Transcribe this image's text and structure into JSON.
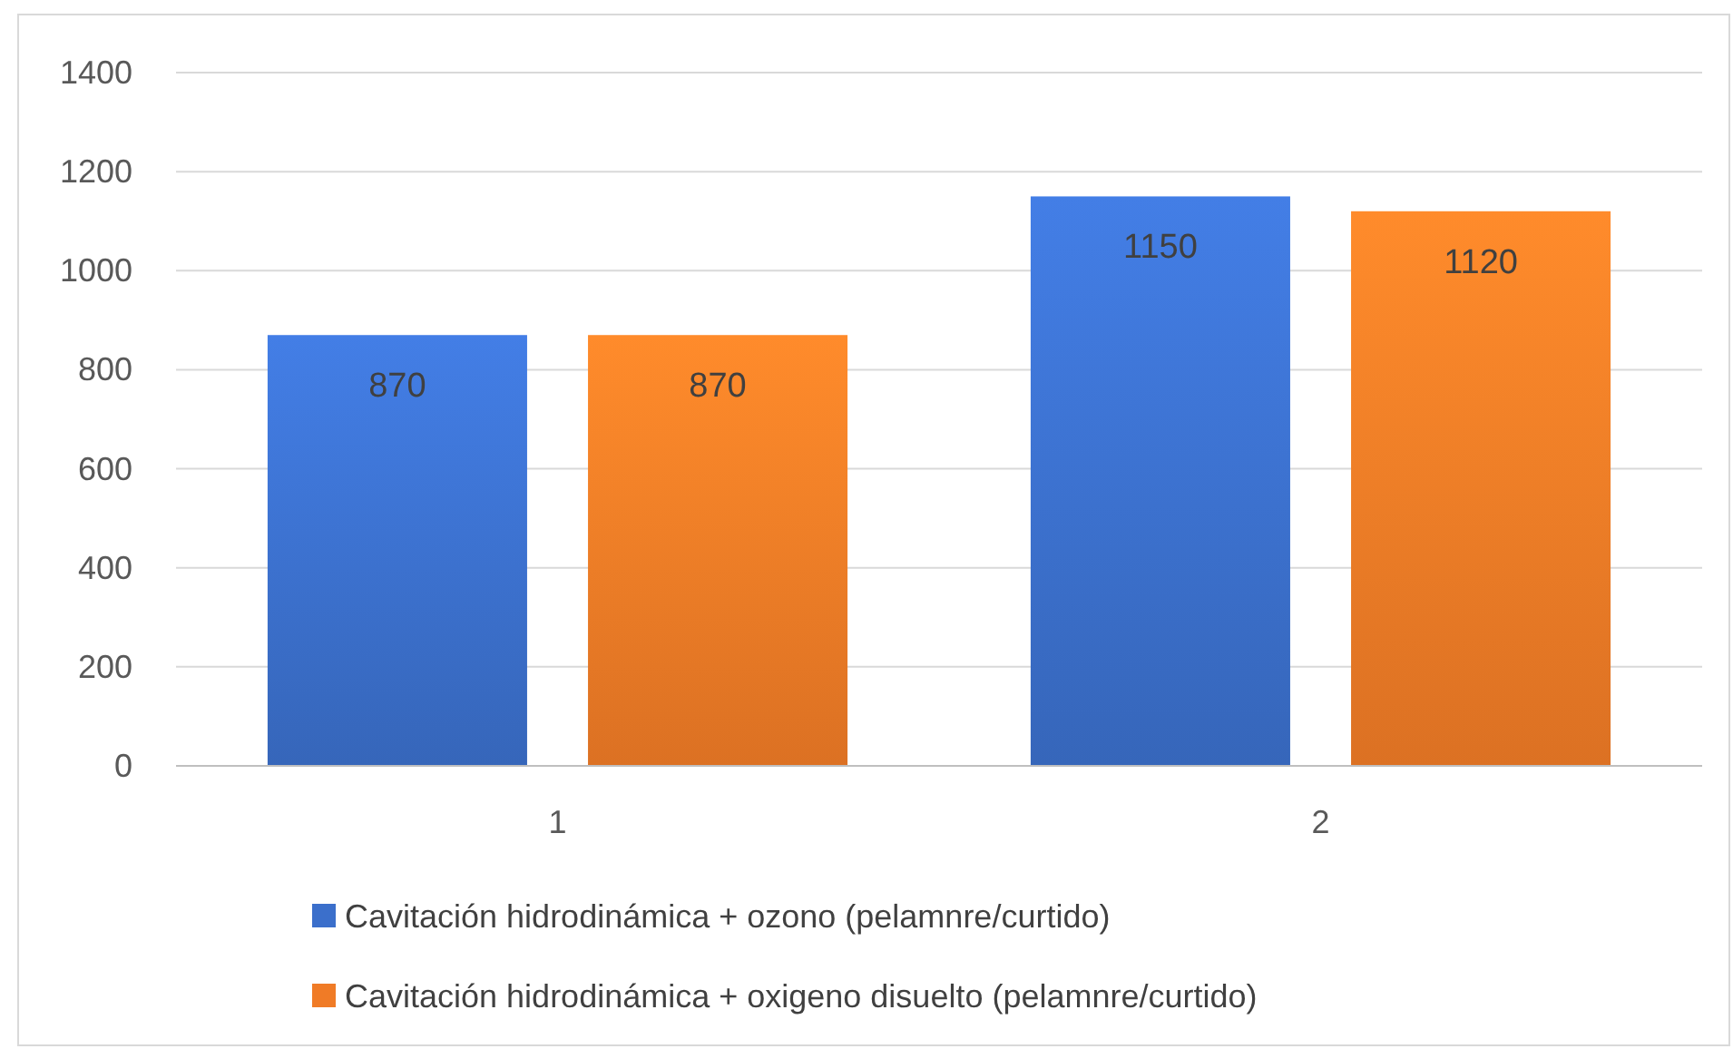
{
  "chart_data": {
    "type": "bar",
    "categories": [
      "1",
      "2"
    ],
    "series": [
      {
        "name": "Cavitación hidrodinámica + ozono (pelamnre/curtido)",
        "color": "#3b6fcb",
        "values": [
          870,
          1150
        ]
      },
      {
        "name": "Cavitación hidrodinámica + oxigeno disuelto (pelamnre/curtido)",
        "color": "#f07b26",
        "values": [
          870,
          1120
        ]
      }
    ],
    "ylim": [
      0,
      1400
    ],
    "yticks": [
      0,
      200,
      400,
      600,
      800,
      1000,
      1200,
      1400
    ],
    "grid": "y",
    "legend": "bottom",
    "data_labels": true
  }
}
